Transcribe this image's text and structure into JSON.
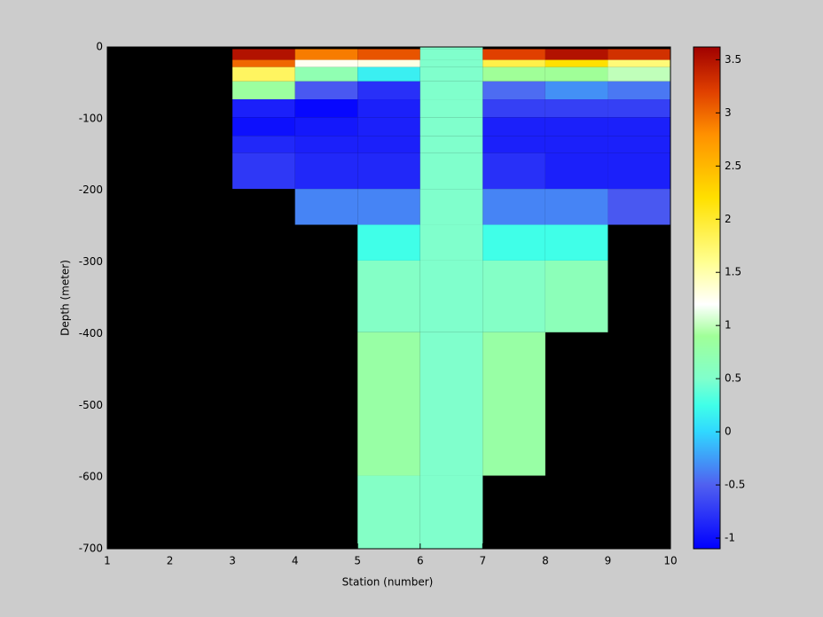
{
  "chart_data": {
    "type": "heatmap",
    "x_label": "Station (number)",
    "y_label": "Depth (meter)",
    "x_edges": [
      3,
      4,
      5,
      6,
      7,
      8,
      9,
      10
    ],
    "y_edges": [
      0,
      -3,
      -18,
      -28,
      -48,
      -73,
      -98,
      -124,
      -148,
      -198,
      -248,
      -298,
      -398,
      -598,
      -700
    ],
    "z": [
      [
        null,
        null,
        null,
        0.5,
        null,
        null,
        null
      ],
      [
        3.5,
        2.9,
        3.1,
        0.5,
        3.2,
        3.5,
        3.3
      ],
      [
        3.0,
        1.25,
        1.3,
        0.5,
        1.9,
        2.2,
        1.7
      ],
      [
        1.8,
        0.7,
        0.15,
        0.5,
        0.9,
        0.9,
        1.0
      ],
      [
        0.85,
        -0.55,
        -0.8,
        0.5,
        -0.45,
        -0.3,
        -0.4
      ],
      [
        -0.9,
        -1.05,
        -0.9,
        0.5,
        -0.7,
        -0.7,
        -0.7
      ],
      [
        -1.0,
        -0.95,
        -0.9,
        0.5,
        -0.9,
        -0.9,
        -0.9
      ],
      [
        -0.85,
        -0.9,
        -0.9,
        0.5,
        -0.9,
        -0.9,
        -0.9
      ],
      [
        -0.75,
        -0.85,
        -0.85,
        0.5,
        -0.8,
        -0.9,
        -0.9
      ],
      [
        null,
        -0.35,
        -0.35,
        0.5,
        -0.35,
        -0.35,
        -0.55
      ],
      [
        null,
        null,
        0.25,
        0.5,
        0.25,
        0.25,
        null
      ],
      [
        null,
        null,
        0.55,
        0.5,
        0.55,
        0.65,
        null
      ],
      [
        null,
        null,
        0.8,
        0.5,
        0.8,
        null,
        null
      ],
      [
        null,
        null,
        0.55,
        0.5,
        null,
        null,
        null
      ]
    ],
    "xlim": [
      1,
      10
    ],
    "xticks": [
      1,
      2,
      3,
      4,
      5,
      6,
      7,
      8,
      9,
      10
    ],
    "ylim": [
      -700,
      0
    ],
    "yticks": [
      -700,
      -600,
      -500,
      -400,
      -300,
      -200,
      -100,
      0
    ],
    "clim": [
      -1.1,
      3.62
    ],
    "cticks": [
      -1,
      -0.5,
      0,
      0.5,
      1,
      1.5,
      2,
      2.5,
      3,
      3.5
    ],
    "background": "#000000",
    "colorscale": [
      [
        -1.1,
        "#0000ff"
      ],
      [
        -0.5,
        "#5060f0"
      ],
      [
        0,
        "#30d8ff"
      ],
      [
        0.25,
        "#40ffe8"
      ],
      [
        0.5,
        "#80ffcc"
      ],
      [
        0.9,
        "#a0ff98"
      ],
      [
        1.2,
        "#ffffff"
      ],
      [
        1.6,
        "#ffff90"
      ],
      [
        2.2,
        "#ffe000"
      ],
      [
        2.8,
        "#ff9000"
      ],
      [
        3.2,
        "#e04000"
      ],
      [
        3.62,
        "#a00000"
      ]
    ]
  }
}
